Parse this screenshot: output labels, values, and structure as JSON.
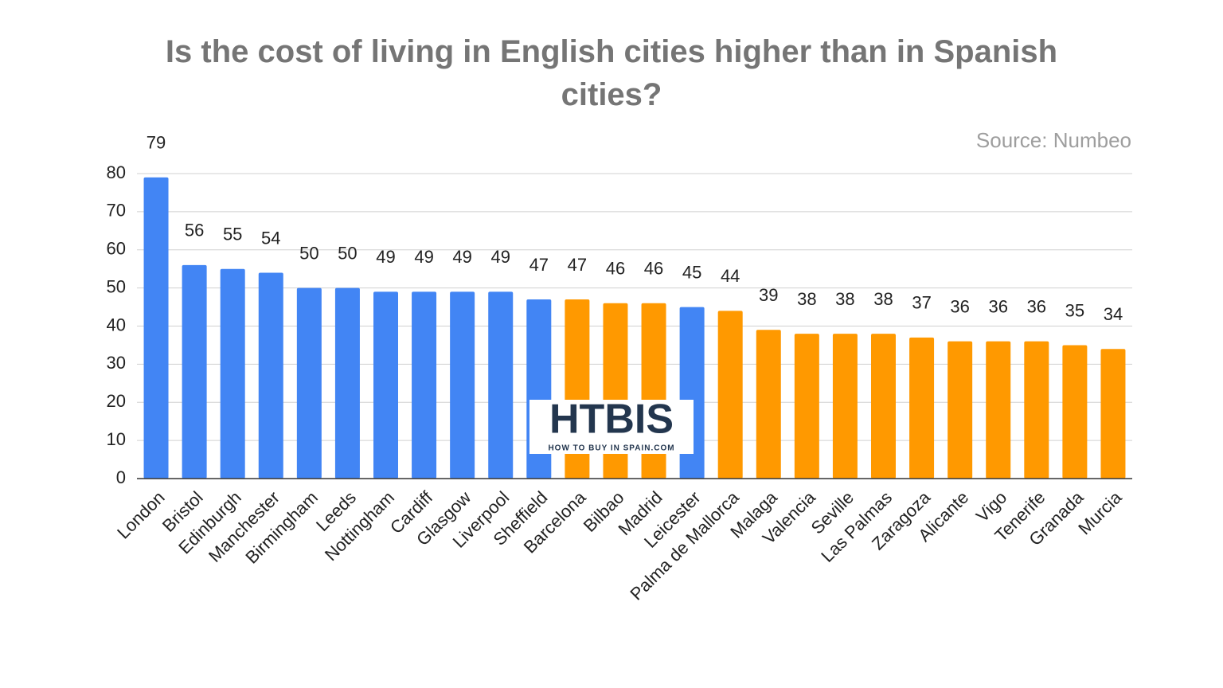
{
  "chart_data": {
    "type": "bar",
    "title": "Is the cost of living in English cities higher than in Spanish cities?",
    "annotation": "Source: Numbeo",
    "categories": [
      "London",
      "Bristol",
      "Edinburgh",
      "Manchester",
      "Birmingham",
      "Leeds",
      "Nottingham",
      "Cardiff",
      "Glasgow",
      "Liverpool",
      "Sheffield",
      "Barcelona",
      "Bilbao",
      "Madrid",
      "Leicester",
      "Palma de Mallorca",
      "Malaga",
      "Valencia",
      "Seville",
      "Las Palmas",
      "Zaragoza",
      "Alicante",
      "Vigo",
      "Tenerife",
      "Granada",
      "Murcia"
    ],
    "values": [
      79,
      56,
      55,
      54,
      50,
      50,
      49,
      49,
      49,
      49,
      47,
      47,
      46,
      46,
      45,
      44,
      39,
      38,
      38,
      38,
      37,
      36,
      36,
      36,
      35,
      34
    ],
    "colors": [
      "#4285f4",
      "#4285f4",
      "#4285f4",
      "#4285f4",
      "#4285f4",
      "#4285f4",
      "#4285f4",
      "#4285f4",
      "#4285f4",
      "#4285f4",
      "#4285f4",
      "#ff9900",
      "#ff9900",
      "#ff9900",
      "#4285f4",
      "#ff9900",
      "#ff9900",
      "#ff9900",
      "#ff9900",
      "#ff9900",
      "#ff9900",
      "#ff9900",
      "#ff9900",
      "#ff9900",
      "#ff9900",
      "#ff9900"
    ],
    "ylim": [
      0,
      80
    ],
    "yticks": [
      0,
      10,
      20,
      30,
      40,
      50,
      60,
      70,
      80
    ],
    "grid": true,
    "watermark": {
      "text": "HTBIS",
      "subtext": "HOW TO BUY IN SPAIN.COM"
    }
  }
}
